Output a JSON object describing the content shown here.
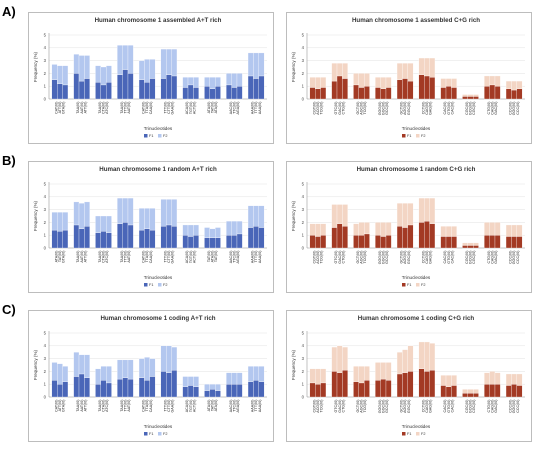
{
  "row_labels": [
    "A)",
    "B)",
    "C)"
  ],
  "chart_data": [
    {
      "id": "A-AT",
      "type": "bar",
      "stacked": true,
      "title": "Human chromosome 1 assembled A+T rich",
      "xlabel": "Trinucleotides",
      "ylabel": "Frequency (%)",
      "ylim": [
        0,
        5
      ],
      "yticks": [
        "0",
        "1",
        "2",
        "3",
        "4",
        "5"
      ],
      "grid": true,
      "legend_placement": "bottom-center",
      "categories": [
        [
          "CAT(I0)",
          "ATT(I0)",
          "GTA(I0)"
        ],
        [
          "TAA(I0)",
          "AAT(I0)",
          "ATT(I0)"
        ],
        [
          "TAA(I0)",
          "CTA(I0)",
          "ATC(I0)"
        ],
        [
          "TAA(I0)",
          "TTT(I0)",
          "AAT(I0)"
        ],
        [
          "CAT(I0)",
          "TTA(I0)",
          "CAA(I0)"
        ],
        [
          "TTT(I0)",
          "CTT(I0)",
          "GAA(I0)"
        ],
        [
          "ACA(I0)",
          "TGT(I0)",
          "ACT(I0)"
        ],
        [
          "ATA(I0)",
          "TAT(I0)",
          "ATA(I0)"
        ],
        [
          "AAC(I0)",
          "TTC(I0)",
          "AGA(I0)"
        ],
        [
          "AAA(I0)",
          "TTT(I0)",
          "AAA(I0)"
        ]
      ],
      "series": [
        {
          "name": "F1",
          "color": "#4a66b8",
          "values": [
            [
              1.5,
              1.2,
              1.1
            ],
            [
              2.0,
              1.4,
              1.6
            ],
            [
              1.3,
              1.1,
              1.3
            ],
            [
              1.9,
              2.3,
              2.0
            ],
            [
              1.5,
              1.3,
              1.6
            ],
            [
              1.6,
              1.9,
              1.8
            ],
            [
              0.9,
              1.1,
              0.9
            ],
            [
              1.0,
              0.8,
              1.0
            ],
            [
              1.1,
              0.9,
              1.0
            ],
            [
              1.8,
              1.6,
              1.8
            ]
          ]
        },
        {
          "name": "F2",
          "color": "#b3c7ef",
          "values": [
            [
              1.2,
              1.4,
              1.5
            ],
            [
              1.5,
              2.0,
              1.8
            ],
            [
              1.3,
              1.4,
              1.3
            ],
            [
              2.3,
              1.9,
              2.2
            ],
            [
              1.5,
              1.8,
              1.5
            ],
            [
              2.3,
              2.0,
              2.1
            ],
            [
              0.8,
              0.6,
              0.8
            ],
            [
              0.7,
              0.9,
              0.7
            ],
            [
              0.9,
              1.1,
              1.0
            ],
            [
              1.8,
              2.0,
              1.8
            ]
          ]
        }
      ]
    },
    {
      "id": "A-CG",
      "type": "bar",
      "stacked": true,
      "title": "Human chromosome 1 assembled C+G rich",
      "xlabel": "Trinucleotides",
      "ylabel": "Frequency (%)",
      "ylim": [
        0,
        5
      ],
      "yticks": [
        "0",
        "1",
        "2",
        "3",
        "4",
        "5"
      ],
      "grid": true,
      "legend_placement": "bottom-center",
      "categories": [
        [
          "CGT(I0)",
          "ACG(I0)",
          "TCG(I0)"
        ],
        [
          "GTC(I0)",
          "GAC(I0)",
          "CTG(I0)"
        ],
        [
          "GCT(I0)",
          "AGC(I0)",
          "TCG(I0)"
        ],
        [
          "GGG(I0)",
          "GGC(I0)",
          "GCC(I0)"
        ],
        [
          "GCT(I0)",
          "AGG(I0)",
          "GGC(I0)"
        ],
        [
          "CCT(I0)",
          "CAG(I0)",
          "GAG(I0)"
        ],
        [
          "CAC(I0)",
          "GTG(I0)",
          "CAC(I0)"
        ],
        [
          "CGC(I0)",
          "GCG(I0)",
          "CGC(I0)"
        ],
        [
          "CTG(I0)",
          "CAG(I0)",
          "GAC(I0)"
        ],
        [
          "CCC(I0)",
          "GGG(I0)",
          "CCC(I0)"
        ]
      ],
      "series": [
        {
          "name": "F1",
          "color": "#a33a24",
          "values": [
            [
              0.9,
              0.8,
              0.9
            ],
            [
              1.4,
              1.8,
              1.6
            ],
            [
              1.1,
              0.9,
              1.0
            ],
            [
              0.9,
              0.8,
              0.9
            ],
            [
              1.5,
              1.6,
              1.4
            ],
            [
              1.9,
              1.8,
              1.7
            ],
            [
              0.9,
              1.0,
              0.9
            ],
            [
              0.2,
              0.2,
              0.2
            ],
            [
              1.0,
              1.1,
              1.0
            ],
            [
              0.8,
              0.7,
              0.8
            ]
          ]
        },
        {
          "name": "F2",
          "color": "#f3d5c4",
          "values": [
            [
              0.8,
              0.9,
              0.8
            ],
            [
              1.4,
              1.0,
              1.2
            ],
            [
              0.9,
              1.1,
              1.0
            ],
            [
              0.8,
              0.9,
              0.8
            ],
            [
              1.3,
              1.2,
              1.4
            ],
            [
              1.3,
              1.4,
              1.5
            ],
            [
              0.7,
              0.6,
              0.7
            ],
            [
              0.15,
              0.15,
              0.15
            ],
            [
              0.8,
              0.7,
              0.8
            ],
            [
              0.6,
              0.7,
              0.6
            ]
          ]
        }
      ]
    },
    {
      "id": "B-AT",
      "type": "bar",
      "stacked": true,
      "title": "Human chromosome 1 random A+T rich",
      "xlabel": "Trinucleotides",
      "ylabel": "Frequency (%)",
      "ylim": [
        0,
        5
      ],
      "yticks": [
        "0",
        "1",
        "2",
        "3",
        "4",
        "5"
      ],
      "grid": true,
      "legend_placement": "bottom-center",
      "categories": [
        [
          "ATA(I0)",
          "TAT(I0)",
          "GTA(I0)"
        ],
        [
          "TAA(I0)",
          "AAT(I0)",
          "ATT(I0)"
        ],
        [
          "TAA(I0)",
          "CTA(I0)",
          "ATC(I0)"
        ],
        [
          "TAA(I0)",
          "TTT(I0)",
          "AAT(I0)"
        ],
        [
          "CAT(I0)",
          "TTA(I0)",
          "CAA(I0)"
        ],
        [
          "TTT(I0)",
          "CTT(I0)",
          "GAA(I0)"
        ],
        [
          "ACA(I0)",
          "TGT(I0)",
          "ACT(I0)"
        ],
        [
          "TAT(I0)",
          "ATA(I0)",
          "TAT(I0)"
        ],
        [
          "AAC(I0)",
          "TTC(I0)",
          "AGA(I0)"
        ],
        [
          "AAA(I0)",
          "TTT(I0)",
          "AAA(I0)"
        ]
      ],
      "series": [
        {
          "name": "F1",
          "color": "#4a66b8",
          "values": [
            [
              1.4,
              1.3,
              1.4
            ],
            [
              1.8,
              1.5,
              1.7
            ],
            [
              1.2,
              1.3,
              1.2
            ],
            [
              1.9,
              2.0,
              1.8
            ],
            [
              1.4,
              1.5,
              1.4
            ],
            [
              1.7,
              1.8,
              1.7
            ],
            [
              1.0,
              0.9,
              1.0
            ],
            [
              0.8,
              0.8,
              0.8
            ],
            [
              1.0,
              1.0,
              1.1
            ],
            [
              1.6,
              1.7,
              1.6
            ]
          ]
        },
        {
          "name": "F2",
          "color": "#b3c7ef",
          "values": [
            [
              1.4,
              1.5,
              1.4
            ],
            [
              1.8,
              2.0,
              1.9
            ],
            [
              1.3,
              1.2,
              1.3
            ],
            [
              2.0,
              1.9,
              2.1
            ],
            [
              1.7,
              1.6,
              1.7
            ],
            [
              2.1,
              2.0,
              2.1
            ],
            [
              0.8,
              0.9,
              0.8
            ],
            [
              0.8,
              0.7,
              0.8
            ],
            [
              1.1,
              1.1,
              1.0
            ],
            [
              1.7,
              1.6,
              1.7
            ]
          ]
        }
      ]
    },
    {
      "id": "B-CG",
      "type": "bar",
      "stacked": true,
      "title": "Human chromosome 1 random C+G rich",
      "xlabel": "Trinucleotides",
      "ylabel": "Frequency (%)",
      "ylim": [
        0,
        5
      ],
      "yticks": [
        "0",
        "1",
        "2",
        "3",
        "4",
        "5"
      ],
      "grid": true,
      "legend_placement": "bottom-center",
      "categories": [
        [
          "CGT(I0)",
          "ACG(I0)",
          "TCG(I0)"
        ],
        [
          "GTC(I0)",
          "GAC(I0)",
          "CTG(I0)"
        ],
        [
          "GCT(I0)",
          "AGC(I0)",
          "TCG(I0)"
        ],
        [
          "GGG(I0)",
          "GGC(I0)",
          "GCC(I0)"
        ],
        [
          "GCT(I0)",
          "AGG(I0)",
          "GGC(I0)"
        ],
        [
          "CCT(I0)",
          "CAG(I0)",
          "GAG(I0)"
        ],
        [
          "CAC(I0)",
          "GTG(I0)",
          "CAC(I0)"
        ],
        [
          "CGC(I0)",
          "GCG(I0)",
          "CGC(I0)"
        ],
        [
          "CTG(I0)",
          "CAG(I0)",
          "GAC(I0)"
        ],
        [
          "CCC(I0)",
          "GGG(I0)",
          "CCC(I0)"
        ]
      ],
      "series": [
        {
          "name": "F1",
          "color": "#a33a24",
          "values": [
            [
              1.0,
              0.9,
              1.0
            ],
            [
              1.6,
              1.9,
              1.7
            ],
            [
              1.0,
              1.0,
              1.1
            ],
            [
              1.0,
              0.9,
              1.0
            ],
            [
              1.7,
              1.6,
              1.8
            ],
            [
              2.0,
              2.1,
              1.9
            ],
            [
              0.9,
              0.9,
              0.9
            ],
            [
              0.2,
              0.2,
              0.2
            ],
            [
              1.0,
              1.0,
              1.0
            ],
            [
              0.9,
              0.9,
              0.9
            ]
          ]
        },
        {
          "name": "F2",
          "color": "#f3d5c4",
          "values": [
            [
              0.9,
              1.0,
              0.9
            ],
            [
              1.8,
              1.5,
              1.7
            ],
            [
              0.9,
              1.0,
              0.9
            ],
            [
              1.0,
              1.1,
              1.0
            ],
            [
              1.8,
              1.9,
              1.7
            ],
            [
              1.9,
              1.8,
              2.0
            ],
            [
              0.8,
              0.8,
              0.8
            ],
            [
              0.2,
              0.2,
              0.2
            ],
            [
              1.0,
              1.0,
              1.0
            ],
            [
              0.9,
              0.9,
              0.9
            ]
          ]
        }
      ]
    },
    {
      "id": "C-AT",
      "type": "bar",
      "stacked": true,
      "title": "Human chromosome 1 coding A+T rich",
      "xlabel": "Trinucleotides",
      "ylabel": "Frequency (%)",
      "ylim": [
        0,
        5
      ],
      "yticks": [
        "0",
        "1",
        "2",
        "3",
        "4",
        "5"
      ],
      "grid": true,
      "legend_placement": "bottom-center",
      "categories": [
        [
          "CAT(I0)",
          "ATT(I0)",
          "GTA(I0)"
        ],
        [
          "TAA(I0)",
          "AAT(I0)",
          "ATT(I0)"
        ],
        [
          "TAA(I0)",
          "CTA(I0)",
          "ATC(I0)"
        ],
        [
          "TAA(I0)",
          "TTT(I0)",
          "AAT(I0)"
        ],
        [
          "CAT(I0)",
          "TTA(I0)",
          "CAA(I0)"
        ],
        [
          "TTT(I0)",
          "CTT(I0)",
          "GAA(I0)"
        ],
        [
          "ACA(I0)",
          "TGT(I0)",
          "ACT(I0)"
        ],
        [
          "ATA(I0)",
          "TAT(I0)",
          "ATA(I0)"
        ],
        [
          "AAC(I0)",
          "TTC(I0)",
          "AGA(I0)"
        ],
        [
          "AAA(I0)",
          "TTT(I0)",
          "AAA(I0)"
        ]
      ],
      "series": [
        {
          "name": "F1",
          "color": "#4a66b8",
          "values": [
            [
              1.3,
              1.0,
              1.2
            ],
            [
              1.6,
              1.8,
              1.5
            ],
            [
              1.0,
              1.3,
              1.1
            ],
            [
              1.4,
              1.5,
              1.4
            ],
            [
              1.5,
              1.3,
              1.6
            ],
            [
              2.0,
              1.9,
              2.1
            ],
            [
              0.8,
              0.9,
              0.8
            ],
            [
              0.5,
              0.6,
              0.5
            ],
            [
              1.0,
              1.0,
              1.0
            ],
            [
              1.2,
              1.3,
              1.2
            ]
          ]
        },
        {
          "name": "F2",
          "color": "#b3c7ef",
          "values": [
            [
              1.4,
              1.6,
              1.2
            ],
            [
              1.9,
              1.5,
              1.8
            ],
            [
              1.2,
              1.1,
              1.3
            ],
            [
              1.5,
              1.4,
              1.5
            ],
            [
              1.5,
              1.8,
              1.4
            ],
            [
              2.0,
              2.1,
              1.8
            ],
            [
              0.8,
              0.7,
              0.8
            ],
            [
              0.5,
              0.4,
              0.5
            ],
            [
              0.9,
              0.9,
              0.9
            ],
            [
              1.2,
              1.1,
              1.2
            ]
          ]
        }
      ]
    },
    {
      "id": "C-CG",
      "type": "bar",
      "stacked": true,
      "title": "Human chromosome 1 coding C+G rich",
      "xlabel": "Trinucleotides",
      "ylabel": "Frequency (%)",
      "ylim": [
        0,
        5
      ],
      "yticks": [
        "0",
        "1",
        "2",
        "3",
        "4",
        "5"
      ],
      "grid": true,
      "legend_placement": "bottom-center",
      "categories": [
        [
          "CGT(I0)",
          "ACG(I0)",
          "TCG(I0)"
        ],
        [
          "GTC(I0)",
          "GAC(I0)",
          "CTG(I0)"
        ],
        [
          "GCT(I0)",
          "AGC(I0)",
          "TCG(I0)"
        ],
        [
          "GGG(I0)",
          "GGC(I0)",
          "GCC(I0)"
        ],
        [
          "GCT(I0)",
          "AGG(I0)",
          "GGC(I0)"
        ],
        [
          "CCT(I0)",
          "CAG(I0)",
          "GAG(I0)"
        ],
        [
          "CAC(I0)",
          "GTG(I0)",
          "CAC(I0)"
        ],
        [
          "CGC(I0)",
          "GCG(I0)",
          "CGC(I0)"
        ],
        [
          "CTG(I0)",
          "CAG(I0)",
          "GAC(I0)"
        ],
        [
          "CCC(I0)",
          "GGG(I0)",
          "CCC(I0)"
        ]
      ],
      "series": [
        {
          "name": "F1",
          "color": "#a33a24",
          "values": [
            [
              1.1,
              1.0,
              1.1
            ],
            [
              2.0,
              1.9,
              2.1
            ],
            [
              1.2,
              1.1,
              1.3
            ],
            [
              1.3,
              1.4,
              1.3
            ],
            [
              1.8,
              1.9,
              2.0
            ],
            [
              2.2,
              2.0,
              2.1
            ],
            [
              0.9,
              0.8,
              0.9
            ],
            [
              0.3,
              0.3,
              0.3
            ],
            [
              1.0,
              1.0,
              1.0
            ],
            [
              0.9,
              1.0,
              0.9
            ]
          ]
        },
        {
          "name": "F2",
          "color": "#f3d5c4",
          "values": [
            [
              1.1,
              1.2,
              1.1
            ],
            [
              1.9,
              2.1,
              1.8
            ],
            [
              1.2,
              1.3,
              1.1
            ],
            [
              1.4,
              1.3,
              1.4
            ],
            [
              1.7,
              1.8,
              2.0
            ],
            [
              2.1,
              2.3,
              2.1
            ],
            [
              0.8,
              0.9,
              0.8
            ],
            [
              0.3,
              0.3,
              0.3
            ],
            [
              0.9,
              1.0,
              0.9
            ],
            [
              0.9,
              0.8,
              0.9
            ]
          ]
        }
      ]
    }
  ]
}
